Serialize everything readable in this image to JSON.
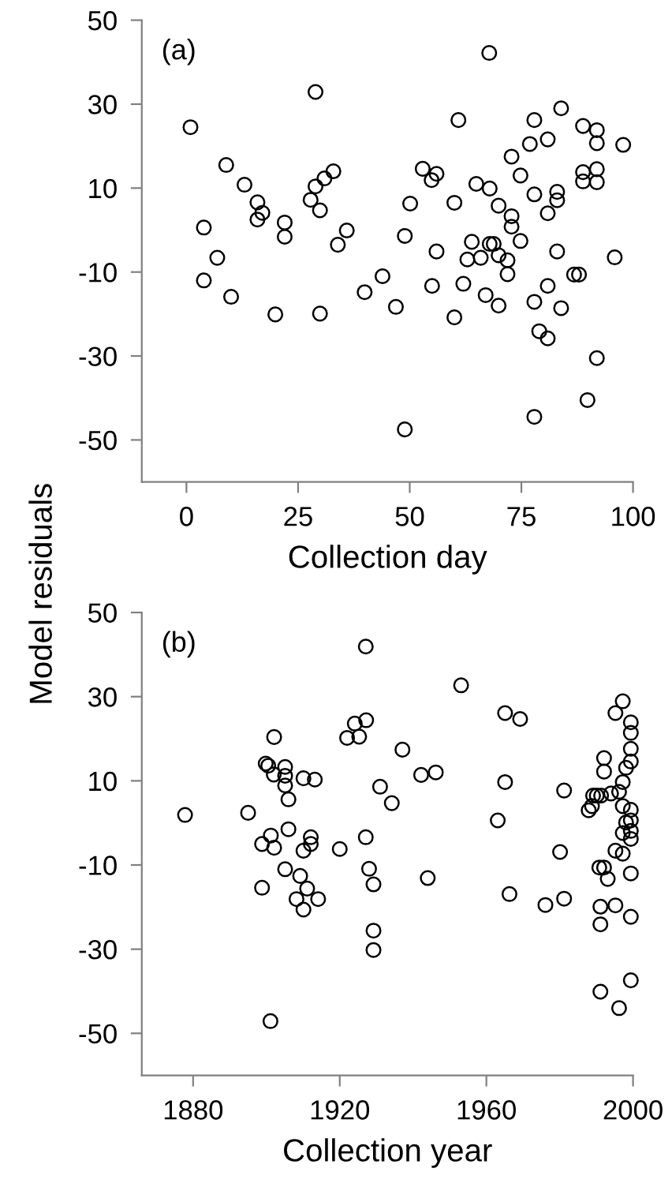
{
  "chart_data": [
    {
      "type": "scatter",
      "xlabel": "Collection day",
      "ylabel": "Model residuals",
      "annotations": [
        "(a)"
      ],
      "marker": "circle",
      "grid": false,
      "xlim": [
        -10,
        100
      ],
      "ylim": [
        -60,
        50
      ],
      "xticks": [
        0,
        25,
        50,
        75,
        100
      ],
      "yticks": [
        -50,
        -30,
        -10,
        10,
        30,
        50
      ],
      "series": [
        {
          "color": "#000000",
          "x": [
            0.9,
            8.9,
            13.0,
            3.9,
            6.9,
            3.9,
            10.0,
            19.9,
            15.9,
            17.0,
            15.9,
            22.0,
            22.0,
            28.9,
            28.9,
            30.9,
            32.9,
            27.8,
            29.9,
            35.9,
            33.9,
            29.9,
            39.9,
            43.9,
            67.8,
            60.9,
            77.9,
            83.9,
            88.8,
            91.9,
            91.9,
            97.8,
            76.9,
            80.9,
            72.8,
            74.8,
            77.9,
            83.0,
            83.0,
            80.9,
            88.8,
            91.9,
            88.8,
            91.9,
            52.9,
            56.0,
            54.9,
            64.9,
            67.9,
            50.1,
            60.0,
            69.9,
            72.8,
            72.8,
            74.8,
            48.9,
            56.0,
            63.9,
            67.9,
            68.8,
            62.9,
            65.9,
            69.9,
            71.9,
            71.9,
            83.0,
            95.9,
            86.8,
            87.9,
            46.9,
            55.0,
            62.0,
            67.0,
            69.9,
            60.0,
            77.9,
            80.9,
            83.9,
            79.0,
            80.9,
            91.9,
            89.8,
            77.9,
            48.9
          ],
          "values": [
            24.5,
            15.5,
            10.8,
            0.6,
            -6.6,
            -12.0,
            -15.9,
            -20.1,
            6.6,
            4.1,
            2.5,
            1.8,
            -1.6,
            32.9,
            10.4,
            12.3,
            14.0,
            7.2,
            4.7,
            -0.1,
            -3.5,
            -19.9,
            -14.8,
            -11.0,
            42.2,
            26.2,
            26.2,
            29.0,
            24.8,
            23.8,
            20.7,
            20.3,
            20.5,
            21.6,
            17.5,
            13.0,
            8.5,
            9.1,
            7.1,
            4.0,
            13.8,
            14.5,
            11.6,
            11.4,
            14.6,
            13.4,
            11.9,
            11.0,
            9.9,
            6.3,
            6.5,
            5.8,
            3.3,
            0.8,
            -2.6,
            -1.4,
            -5.1,
            -2.8,
            -3.3,
            -3.3,
            -7.0,
            -6.6,
            -6.0,
            -7.2,
            -10.5,
            -5.1,
            -6.5,
            -10.6,
            -10.6,
            -18.3,
            -13.3,
            -12.8,
            -15.5,
            -18.0,
            -20.8,
            -17.1,
            -13.3,
            -18.6,
            -24.1,
            -25.8,
            -30.5,
            -40.5,
            -44.5,
            -47.5
          ]
        }
      ]
    },
    {
      "type": "scatter",
      "xlabel": "Collection year",
      "annotations": [
        "(b)"
      ],
      "marker": "circle",
      "grid": false,
      "xlim": [
        1866,
        2000
      ],
      "ylim": [
        -60,
        50
      ],
      "xticks": [
        1880,
        1920,
        1960,
        2000
      ],
      "yticks": [
        -50,
        -30,
        -10,
        10,
        30,
        50
      ],
      "series": [
        {
          "color": "#000000",
          "x": [
            1877.8,
            1895.0,
            1902.1,
            1899.8,
            1900.5,
            1905.1,
            1902.0,
            1905.1,
            1905.1,
            1910.1,
            1913.2,
            1906.0,
            1906.0,
            1901.2,
            1898.8,
            1902.1,
            1912.1,
            1912.1,
            1910.1,
            1920.0,
            1905.1,
            1909.2,
            1898.8,
            1911.1,
            1908.2,
            1914.1,
            1910.1,
            1901.1,
            1927.1,
            1924.1,
            1927.2,
            1922.0,
            1925.3,
            1927.1,
            1928.0,
            1929.2,
            1929.2,
            1929.2,
            1931.0,
            1934.2,
            1937.1,
            1942.2,
            1946.2,
            1944.0,
            1953.1,
            1965.1,
            1969.2,
            1965.1,
            1963.1,
            1966.3,
            1976.1,
            1981.2,
            1980.1,
            1981.2,
            1992.1,
            1992.1,
            1995.2,
            1997.2,
            1999.4,
            1999.4,
            1999.4,
            1999.4,
            1998.1,
            1997.2,
            1996.2,
            1994.0,
            1991.3,
            1990.1,
            1989.1,
            1988.8,
            1987.9,
            1997.2,
            1999.4,
            1998.1,
            1999.4,
            1997.2,
            1999.4,
            1999.4,
            1995.2,
            1997.2,
            1990.8,
            1992.1,
            1993.1,
            1999.4,
            1991.1,
            1995.2,
            1991.1,
            1999.4,
            1999.4,
            1991.1,
            1996.2
          ],
          "values": [
            1.9,
            2.4,
            20.4,
            14.1,
            13.6,
            13.3,
            11.5,
            11.2,
            8.9,
            10.6,
            10.3,
            5.6,
            -1.5,
            -3.0,
            -5.0,
            -5.9,
            -3.4,
            -5.0,
            -6.6,
            -6.2,
            -11.0,
            -12.6,
            -15.4,
            -15.6,
            -18.1,
            -18.1,
            -20.6,
            -47.1,
            41.9,
            23.6,
            24.4,
            20.2,
            20.5,
            -3.4,
            -10.9,
            -14.6,
            -25.6,
            -30.2,
            8.6,
            4.7,
            17.4,
            11.4,
            12.0,
            -13.1,
            32.7,
            26.1,
            24.7,
            9.7,
            0.6,
            -16.9,
            -19.5,
            -18.0,
            -6.9,
            7.7,
            15.4,
            12.2,
            26.1,
            28.9,
            23.9,
            21.4,
            17.6,
            14.6,
            13.1,
            9.7,
            7.4,
            7.0,
            6.5,
            6.5,
            6.5,
            4.0,
            3.0,
            4.0,
            3.1,
            0.1,
            0.6,
            -2.4,
            -1.9,
            -3.8,
            -6.6,
            -7.3,
            -10.6,
            -10.6,
            -13.3,
            -12.0,
            -19.9,
            -19.6,
            -24.1,
            -22.3,
            -37.4,
            -40.1,
            -44.0
          ]
        }
      ]
    }
  ]
}
